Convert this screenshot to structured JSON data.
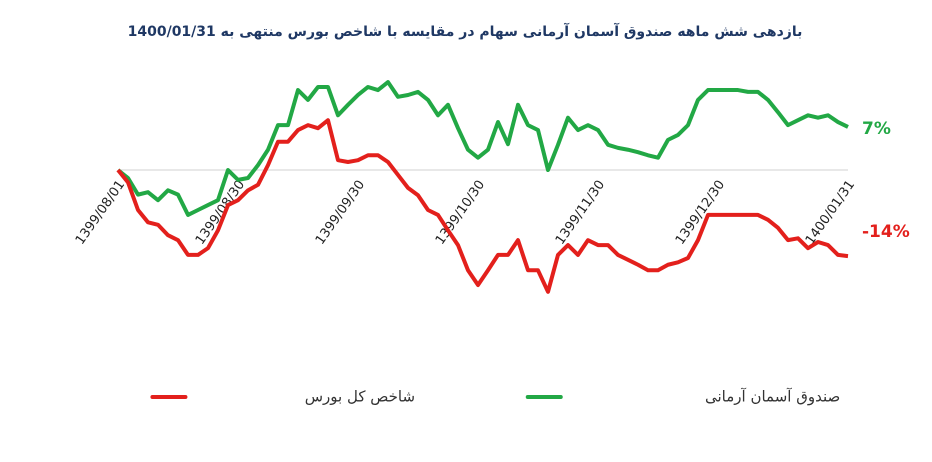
{
  "chart_data": {
    "type": "line",
    "title": "بازدهی شش ماهه صندوق آسمان آرمانی سهام در مقایسه با شاخص بورس منتهی به 1400/01/31",
    "categories": [
      "1399/08/01",
      null,
      null,
      null,
      null,
      null,
      null,
      null,
      null,
      null,
      null,
      null,
      "1399/08/30",
      null,
      null,
      null,
      null,
      null,
      null,
      null,
      null,
      null,
      null,
      null,
      "1399/09/30",
      null,
      null,
      null,
      null,
      null,
      null,
      null,
      null,
      null,
      null,
      null,
      "1399/10/30",
      null,
      null,
      null,
      null,
      null,
      null,
      null,
      null,
      null,
      null,
      null,
      "1399/11/30",
      null,
      null,
      null,
      null,
      null,
      null,
      null,
      null,
      null,
      null,
      null,
      "1399/12/30",
      null,
      null,
      null,
      null,
      null,
      null,
      null,
      null,
      null,
      null,
      null,
      null,
      "1400/01/31"
    ],
    "series": [
      {
        "name": "صندوق آسمان آرمانی",
        "color": "#22a845",
        "values": [
          0,
          -1.3,
          -4,
          -3.6,
          -4.9,
          -3.3,
          -4,
          -7.3,
          -6.5,
          -5.7,
          -4.9,
          0,
          -1.6,
          -1.3,
          0.8,
          3.3,
          7.3,
          7.3,
          13,
          11.4,
          13.5,
          13.5,
          8.9,
          10.6,
          12.2,
          13.5,
          13,
          14.3,
          11.9,
          12.2,
          12.7,
          11.4,
          8.9,
          10.6,
          6.8,
          3.3,
          2,
          3.3,
          7.8,
          4.2,
          10.6,
          7.3,
          6.5,
          0,
          4.1,
          8.5,
          6.5,
          7.3,
          6.5,
          4.1,
          3.6,
          3.3,
          2.9,
          2.4,
          2,
          4.9,
          5.7,
          7.3,
          11.4,
          13,
          13,
          13,
          13,
          12.7,
          12.7,
          11.4,
          9.4,
          7.3,
          8.1,
          8.9,
          8.5,
          8.9,
          7.8,
          7
        ],
        "value_labels": [
          null,
          null,
          null,
          null,
          null,
          null,
          null,
          null,
          null,
          null,
          null,
          null,
          null,
          null,
          null,
          null,
          null,
          null,
          null,
          null,
          null,
          null,
          null,
          null,
          null,
          null,
          null,
          null,
          null,
          null,
          null,
          null,
          null,
          null,
          null,
          null,
          null,
          null,
          null,
          null,
          null,
          null,
          null,
          null,
          null,
          null,
          null,
          null,
          null,
          null,
          null,
          null,
          null,
          null,
          null,
          null,
          null,
          null,
          null,
          null,
          null,
          null,
          null,
          null,
          null,
          null,
          null,
          null,
          null,
          null,
          null,
          null,
          null,
          "7%"
        ]
      },
      {
        "name": "شاخص کل بورس",
        "color": "#e3201c",
        "values": [
          0,
          -2,
          -6.5,
          -8.5,
          -8.9,
          -10.6,
          -11.4,
          -13.8,
          -13.8,
          -12.7,
          -9.8,
          -5.7,
          -4.9,
          -3.3,
          -2.4,
          0.8,
          4.6,
          4.6,
          6.5,
          7.3,
          6.8,
          8.1,
          1.6,
          1.3,
          1.6,
          2.4,
          2.4,
          1.3,
          -0.8,
          -2.9,
          -4.1,
          -6.5,
          -7.3,
          -9.8,
          -12.2,
          -16.3,
          -18.7,
          -16.3,
          -13.8,
          -13.8,
          -11.4,
          -16.3,
          -16.3,
          -19.8,
          -13.8,
          -12.2,
          -13.8,
          -11.4,
          -12.2,
          -12.2,
          -13.8,
          -14.6,
          -15.4,
          -16.3,
          -16.3,
          -15.4,
          -15,
          -14.3,
          -11.4,
          -7.3,
          -7.3,
          -7.3,
          -7.3,
          -7.3,
          -7.3,
          -8.1,
          -9.4,
          -11.4,
          -11.1,
          -12.7,
          -11.7,
          -12.2,
          -13.8,
          -14
        ],
        "value_labels": [
          null,
          null,
          null,
          null,
          null,
          null,
          null,
          null,
          null,
          null,
          null,
          null,
          null,
          null,
          null,
          null,
          null,
          null,
          null,
          null,
          null,
          null,
          null,
          null,
          null,
          null,
          null,
          null,
          null,
          null,
          null,
          null,
          null,
          null,
          null,
          null,
          null,
          null,
          null,
          null,
          null,
          null,
          null,
          null,
          null,
          null,
          null,
          null,
          null,
          null,
          null,
          null,
          null,
          null,
          null,
          null,
          null,
          null,
          null,
          null,
          null,
          null,
          null,
          null,
          null,
          null,
          null,
          null,
          null,
          null,
          null,
          null,
          null,
          "-14%"
        ]
      }
    ],
    "ylim": [
      -21,
      18
    ],
    "hline": 0,
    "legend": "bottom"
  }
}
